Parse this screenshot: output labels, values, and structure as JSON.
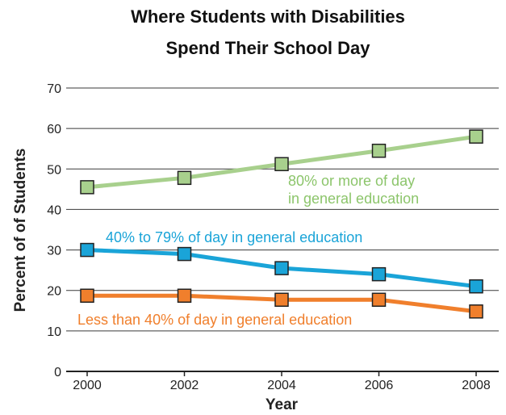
{
  "chart_data": {
    "type": "line",
    "title_line1": "Where Students with Disabilities",
    "title_line2": "Spend Their School Day",
    "xlabel": "Year",
    "ylabel": "Percent of of Students",
    "x": [
      2000,
      2002,
      2004,
      2006,
      2008
    ],
    "x_tick_labels": [
      "2000",
      "2002",
      "2004",
      "2006",
      "2008"
    ],
    "ylim": [
      0,
      70
    ],
    "y_ticks": [
      0,
      10,
      20,
      30,
      40,
      50,
      60,
      70
    ],
    "y_tick_labels": [
      "0",
      "10",
      "20",
      "30",
      "40",
      "50",
      "60",
      "70"
    ],
    "grid": "horizontal",
    "series": [
      {
        "name": "80% or more of day in general education",
        "label_lines": [
          "80% or more of day",
          "in general education"
        ],
        "values": [
          45.5,
          47.8,
          51.2,
          54.5,
          58
        ],
        "line_color": "#a8d08d",
        "marker_color": "#a8d08d",
        "text_color": "#8cc56b"
      },
      {
        "name": "40% to 79% of day in general education",
        "label_lines": [
          "40% to 79% of day in general education"
        ],
        "values": [
          30,
          29,
          25.5,
          24,
          21
        ],
        "line_color": "#1aa4d8",
        "marker_color": "#1aa4d8",
        "text_color": "#1aa4d8"
      },
      {
        "name": "Less than 40% of day in general education",
        "label_lines": [
          "Less than 40% of day in general education"
        ],
        "values": [
          18.7,
          18.7,
          17.7,
          17.7,
          14.8
        ],
        "line_color": "#f07f2c",
        "marker_color": "#f07f2c",
        "text_color": "#f07f2c"
      }
    ]
  }
}
